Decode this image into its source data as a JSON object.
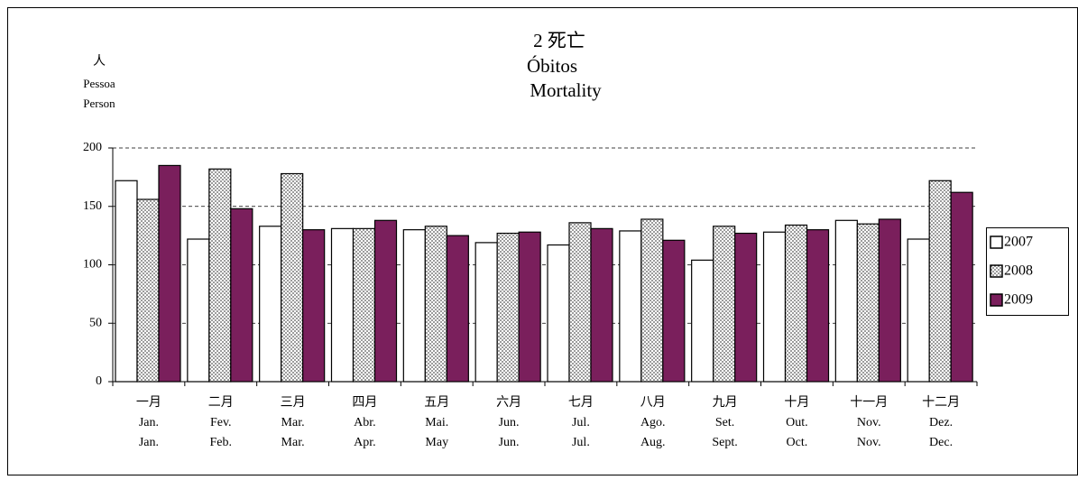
{
  "chart_data": {
    "type": "bar",
    "title": [
      "2 死亡",
      "Óbitos",
      "Mortality"
    ],
    "y_label": [
      "人",
      "Pessoa",
      "Person"
    ],
    "categories": [
      [
        "一月",
        "Jan.",
        "Jan."
      ],
      [
        "二月",
        "Fev.",
        "Feb."
      ],
      [
        "三月",
        "Mar.",
        "Mar."
      ],
      [
        "四月",
        "Abr.",
        "Apr."
      ],
      [
        "五月",
        "Mai.",
        "May"
      ],
      [
        "六月",
        "Jun.",
        "Jun."
      ],
      [
        "七月",
        "Jul.",
        "Jul."
      ],
      [
        "八月",
        "Ago.",
        "Aug."
      ],
      [
        "九月",
        "Set.",
        "Sept."
      ],
      [
        "十月",
        "Out.",
        "Oct."
      ],
      [
        "十一月",
        "Nov.",
        "Nov."
      ],
      [
        "十二月",
        "Dez.",
        "Dec."
      ]
    ],
    "series": [
      {
        "name": "2007",
        "color": "#ffffff",
        "values": [
          172,
          122,
          133,
          131,
          130,
          119,
          117,
          129,
          104,
          128,
          138,
          122
        ]
      },
      {
        "name": "2008",
        "color": "#ffffff",
        "pattern": "dots",
        "values": [
          156,
          182,
          178,
          131,
          133,
          127,
          136,
          139,
          133,
          134,
          135,
          172
        ]
      },
      {
        "name": "2009",
        "color": "#7a1f5c",
        "values": [
          185,
          148,
          130,
          138,
          125,
          128,
          131,
          121,
          127,
          130,
          139,
          162
        ]
      }
    ],
    "ylim": [
      0,
      200
    ],
    "yticks": [
      0,
      50,
      100,
      150,
      200
    ],
    "grid": true,
    "legend": "right"
  }
}
